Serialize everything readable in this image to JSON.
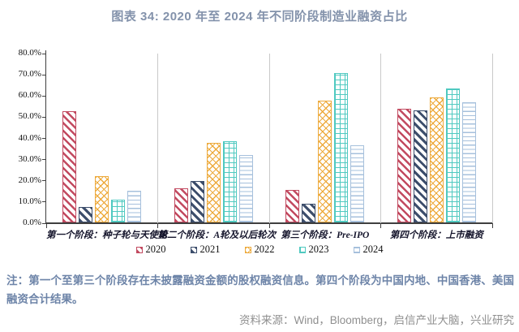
{
  "title": "图表 34: 2020 年至 2024 年不同阶段制造业融资占比",
  "note": "注：第一个至第三个阶段存在未披露融资金额的股权融资信息。第四个阶段为中国内地、中国香港、美国融资合计结果。",
  "source": "资料来源：Wind，Bloomberg，启信产业大脑，兴业研究",
  "colors": {
    "title_text": "#8392ab",
    "note_text": "#6d84a8",
    "source_text": "#8f8f8f",
    "axis": "#3f3f3f",
    "group_separator": "#c9c9c9",
    "series_2020": "#c24a60",
    "series_2021": "#3c4d6b",
    "series_2022": "#edaa3c",
    "series_2023": "#4fc9c0",
    "series_2024": "#a6c0dc"
  },
  "chart_data": {
    "type": "bar",
    "title": "图表 34: 2020 年至 2024 年不同阶段制造业融资占比",
    "xlabel": "",
    "ylabel": "",
    "ylim": [
      0,
      80
    ],
    "grid": "vertical-category-separators-only",
    "legend_position": "bottom",
    "y_tick_labels": [
      "0.0%",
      "10.0%",
      "20.0%",
      "30.0%",
      "40.0%",
      "50.0%",
      "60.0%",
      "70.0%",
      "80.0%"
    ],
    "categories": [
      "第一个阶段：种子轮与天使轮",
      "第二个阶段：A轮及以后轮次",
      "第三个阶段：Pre-IPO",
      "第四个阶段：上市融资"
    ],
    "series": [
      {
        "name": "2020",
        "color": "#c24a60",
        "pattern": "diagonal-stripes",
        "values": [
          52.4,
          16.2,
          15.3,
          53.6
        ]
      },
      {
        "name": "2021",
        "color": "#3c4d6b",
        "pattern": "diagonal-stripes-bold",
        "values": [
          7.3,
          19.5,
          8.8,
          52.8
        ]
      },
      {
        "name": "2022",
        "color": "#edaa3c",
        "pattern": "diamond-crosshatch",
        "values": [
          22.0,
          37.4,
          57.4,
          59.0
        ]
      },
      {
        "name": "2023",
        "color": "#4fc9c0",
        "pattern": "grid",
        "values": [
          10.7,
          38.4,
          70.4,
          63.2
        ]
      },
      {
        "name": "2024",
        "color": "#a6c0dc",
        "pattern": "horizontal-lines",
        "values": [
          15.1,
          31.8,
          36.4,
          56.7
        ]
      }
    ]
  }
}
